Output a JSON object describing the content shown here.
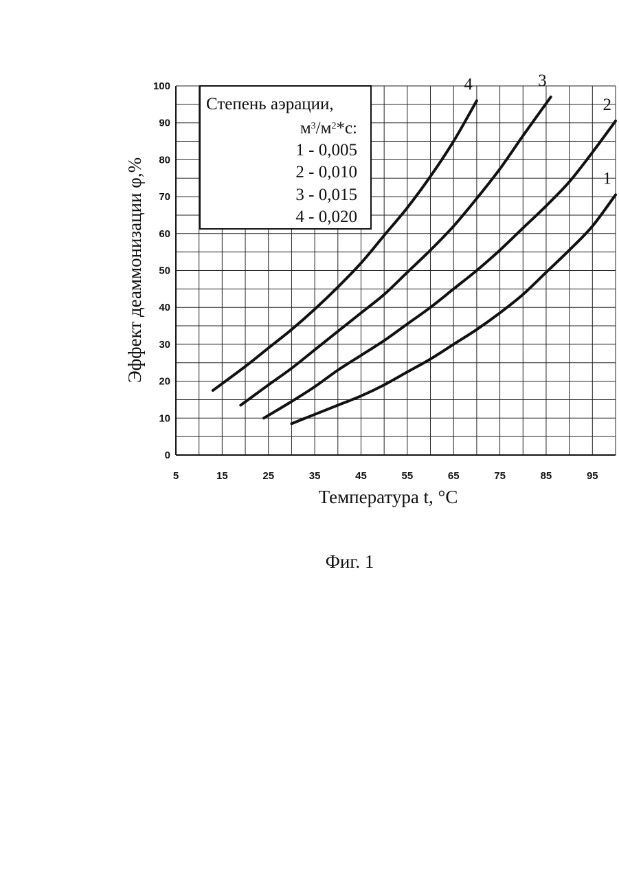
{
  "chart_data": {
    "type": "line",
    "title": "",
    "xlabel": "Температура t, °С",
    "ylabel": "Эффект деаммонизации φ,%",
    "xlim": [
      5,
      100
    ],
    "ylim": [
      0,
      100
    ],
    "x_ticks": [
      "5",
      "15",
      "25",
      "35",
      "45",
      "55",
      "65",
      "75",
      "85",
      "95"
    ],
    "y_ticks": [
      "0",
      "10",
      "20",
      "30",
      "40",
      "50",
      "60",
      "70",
      "80",
      "90",
      "100"
    ],
    "grid": true,
    "legend": {
      "title_line1": "Степень аэрации,",
      "title_line2_base": "м",
      "title_line2_sup1": "3",
      "title_line2_mid": "/м",
      "title_line2_sup2": "2",
      "title_line2_end": "*с:",
      "entries": [
        "1 - 0,005",
        "2 - 0,010",
        "3 - 0,015",
        "4 - 0,020"
      ],
      "placement": "top-left"
    },
    "series": [
      {
        "name": "1",
        "color": "#111111",
        "x": [
          30,
          35,
          40,
          45,
          50,
          55,
          60,
          65,
          70,
          75,
          80,
          85,
          90,
          95,
          100
        ],
        "y": [
          8.5,
          11,
          13.5,
          16,
          19,
          22.5,
          26,
          30,
          34,
          38.5,
          43.5,
          49.5,
          55.5,
          62,
          70.5
        ]
      },
      {
        "name": "2",
        "color": "#111111",
        "x": [
          24,
          30,
          35,
          40,
          45,
          50,
          55,
          60,
          65,
          70,
          75,
          80,
          85,
          90,
          95,
          100
        ],
        "y": [
          10,
          14.5,
          18.5,
          23,
          27,
          31,
          35.5,
          40,
          45,
          50,
          55.5,
          61.5,
          67.5,
          74,
          82,
          90.5
        ]
      },
      {
        "name": "3",
        "color": "#111111",
        "x": [
          19,
          25,
          30,
          35,
          40,
          45,
          50,
          55,
          60,
          65,
          70,
          75,
          80,
          86
        ],
        "y": [
          13.5,
          19,
          23.5,
          28.5,
          33.5,
          38.5,
          43.5,
          49.5,
          55.5,
          62,
          69.5,
          77.5,
          86.5,
          97
        ]
      },
      {
        "name": "4",
        "color": "#111111",
        "x": [
          13,
          20,
          25,
          30,
          35,
          40,
          45,
          50,
          55,
          60,
          65,
          70
        ],
        "y": [
          17.5,
          24,
          29,
          34,
          39.5,
          45.5,
          52,
          59.5,
          67,
          75.5,
          85,
          96
        ]
      }
    ]
  },
  "figure_caption": "Фиг. 1"
}
